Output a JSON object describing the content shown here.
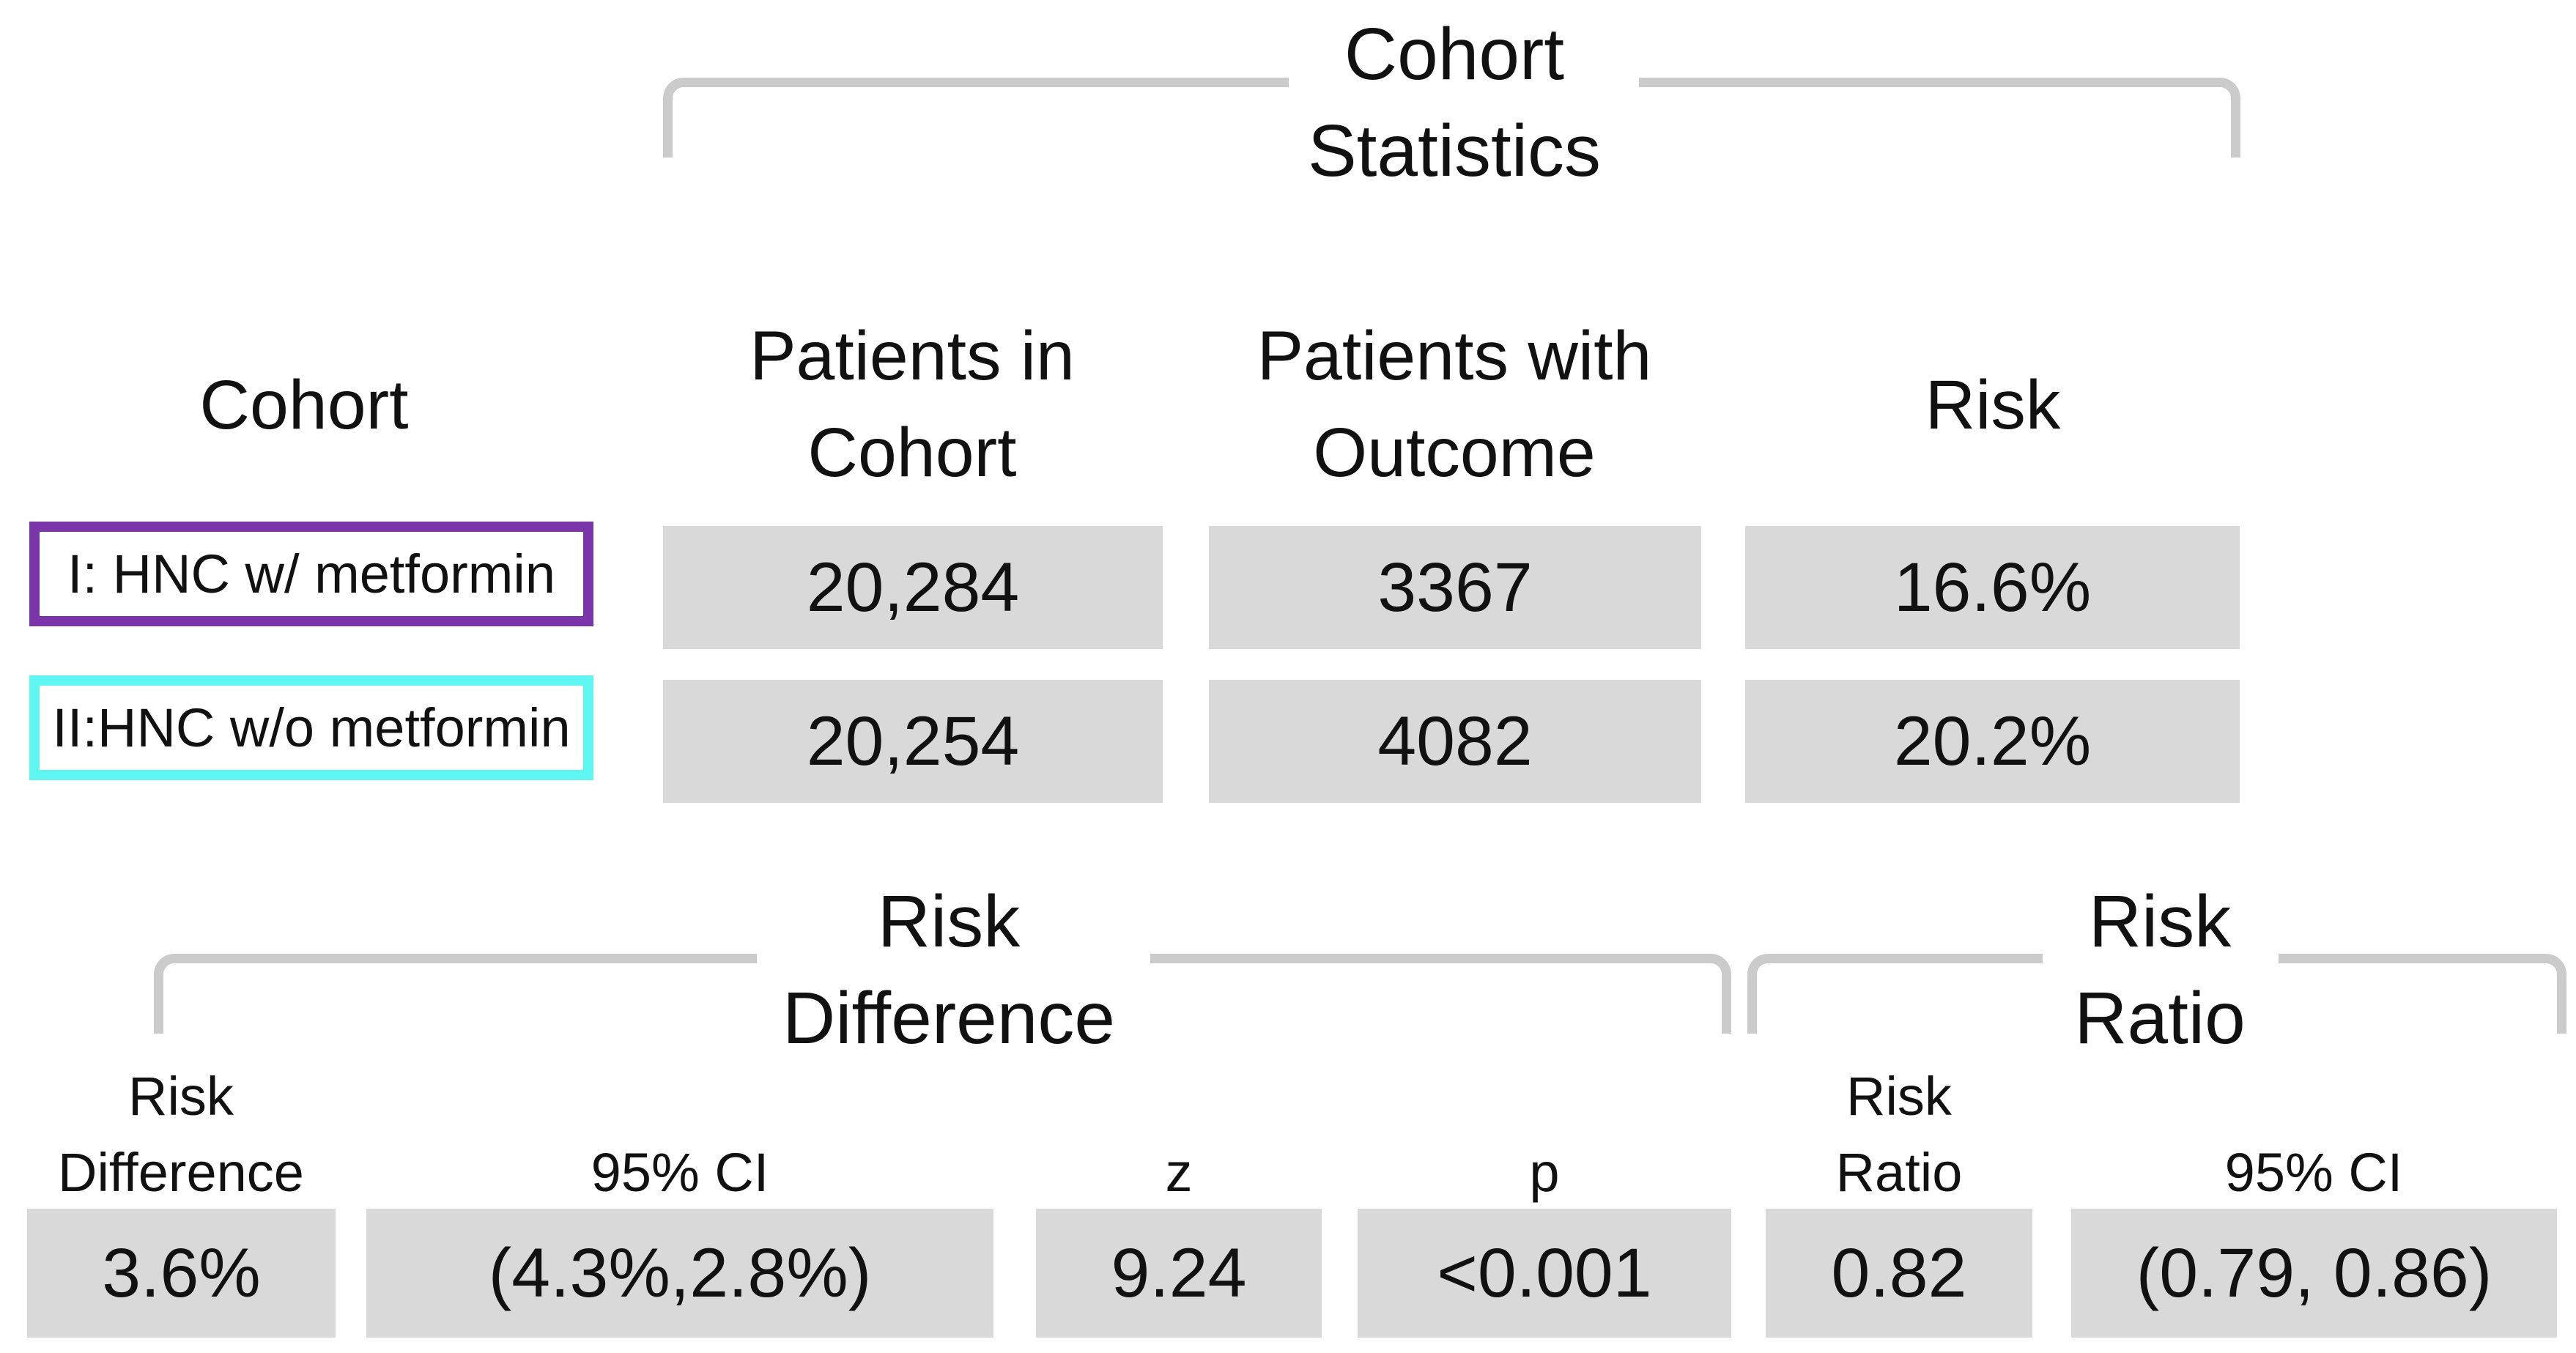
{
  "chart_data": {
    "type": "table",
    "title": "Cohort Statistics",
    "columns": [
      "Cohort",
      "Patients in Cohort",
      "Patients with Outcome",
      "Risk"
    ],
    "rows": [
      {
        "cohort": "I: HNC w/ metformin",
        "patients_in_cohort": 20284,
        "patients_with_outcome": 3367,
        "risk_pct": 16.6
      },
      {
        "cohort": "II:HNC w/o metformin",
        "patients_in_cohort": 20254,
        "patients_with_outcome": 4082,
        "risk_pct": 20.2
      }
    ],
    "risk_difference": {
      "value_pct": 3.6,
      "ci_95": "(4.3%,2.8%)",
      "z": 9.24,
      "p": "<0.001"
    },
    "risk_ratio": {
      "value": 0.82,
      "ci_95": "(0.79, 0.86)"
    }
  },
  "colors": {
    "cohort1_accent": "#7A35A8",
    "cohort2_accent": "#5FF6F2",
    "cell_fill": "#D9D9D9",
    "bracket": "#CBCBCB",
    "text": "#111111",
    "background": "#FFFFFF"
  },
  "cohort_table": {
    "title": "Cohort\nStatistics",
    "columns": {
      "cohort": "Cohort",
      "patients_in_cohort": "Patients in\nCohort",
      "patients_with_outcome": "Patients with\nOutcome",
      "risk": "Risk"
    },
    "rows": [
      {
        "label": "I: HNC w/ metformin",
        "accent_color": "#7A35A8",
        "patients_in_cohort": "20,284",
        "patients_with_outcome": "3367",
        "risk": "16.6%"
      },
      {
        "label": "II:HNC w/o metformin",
        "accent_color": "#5FF6F2",
        "patients_in_cohort": "20,254",
        "patients_with_outcome": "4082",
        "risk": "20.2%"
      }
    ]
  },
  "risk_difference": {
    "title": "Risk\nDifference",
    "headers": {
      "risk_difference": "Risk\nDifference",
      "ci": "95% CI",
      "z": "z",
      "p": "p"
    },
    "values": {
      "risk_difference": "3.6%",
      "ci": "(4.3%,2.8%)",
      "z": "9.24",
      "p": "<0.001"
    }
  },
  "risk_ratio": {
    "title": "Risk\nRatio",
    "headers": {
      "risk_ratio": "Risk\nRatio",
      "ci": "95% CI"
    },
    "values": {
      "risk_ratio": "0.82",
      "ci": "(0.79, 0.86)"
    }
  }
}
